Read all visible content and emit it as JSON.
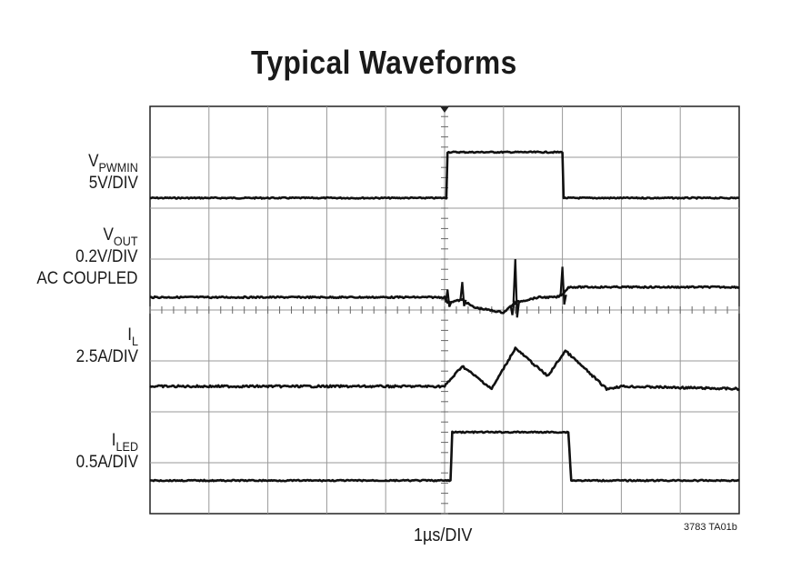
{
  "chart_data": {
    "type": "line",
    "title": "Typical Waveforms",
    "xlabel": "1µs/DIV",
    "figure_id": "3783 TA01b",
    "x_divisions": 10,
    "y_divisions": 8,
    "grid": true,
    "xlim": [
      0,
      10
    ],
    "series": [
      {
        "name_main": "V",
        "name_sub": "PWMIN",
        "scale": "5V/DIV",
        "x": [
          0,
          5.03,
          5.05,
          7.0,
          7.02,
          10
        ],
        "y": [
          1.8,
          1.8,
          0.9,
          0.9,
          1.8,
          1.8
        ],
        "noise": 0.012
      },
      {
        "name_main": "V",
        "name_sub": "OUT",
        "scale": "0.2V/DIV",
        "scale2": "AC COUPLED",
        "x": [
          0,
          5.0,
          5.05,
          5.3,
          5.5,
          6.0,
          6.2,
          6.6,
          6.9,
          7.0,
          7.1,
          7.3,
          10
        ],
        "y": [
          3.75,
          3.75,
          3.85,
          3.8,
          3.95,
          4.05,
          3.85,
          3.75,
          3.75,
          3.7,
          3.55,
          3.55,
          3.55
        ],
        "spikes": [
          [
            5.05,
            -0.25
          ],
          [
            5.3,
            -0.35
          ],
          [
            6.2,
            -0.85
          ],
          [
            7.0,
            -0.55
          ],
          [
            6.15,
            0.2
          ]
        ],
        "noise": 0.015
      },
      {
        "name_main": "I",
        "name_sub": "L",
        "scale": "2.5A/DIV",
        "x": [
          0,
          5.0,
          5.3,
          5.8,
          6.2,
          6.75,
          7.05,
          7.75,
          8.0,
          10
        ],
        "y": [
          5.5,
          5.5,
          5.1,
          5.55,
          4.75,
          5.3,
          4.8,
          5.55,
          5.5,
          5.55
        ],
        "noise": 0.02
      },
      {
        "name_main": "I",
        "name_sub": "LED",
        "scale": "0.5A/DIV",
        "x": [
          0,
          5.1,
          5.13,
          7.1,
          7.15,
          10
        ],
        "y": [
          7.35,
          7.35,
          6.4,
          6.4,
          7.35,
          7.35
        ],
        "noise": 0.012
      }
    ]
  }
}
